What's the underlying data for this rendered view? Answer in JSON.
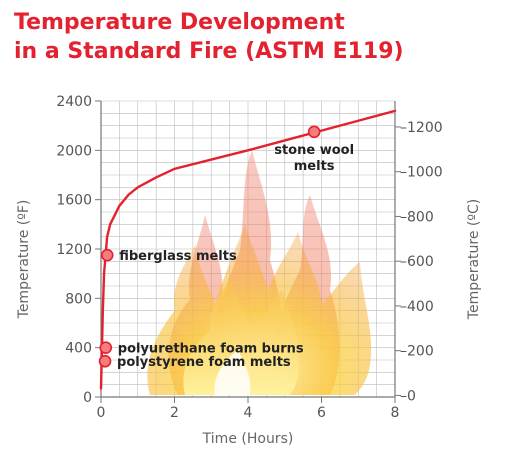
{
  "title_lines": [
    "Temperature Development",
    "in a Standard Fire (ASTM E119)"
  ],
  "colors": {
    "title": "#e3212f",
    "curve": "#e3212f",
    "marker_fill": "#f47e7e",
    "grid": "#bbbbbb",
    "axis": "#777777"
  },
  "chart_data": {
    "type": "line",
    "title": "Temperature Development in a Standard Fire (ASTM E119)",
    "xlabel": "Time (Hours)",
    "ylabel_left": "Temperature  (ºF)",
    "ylabel_right": "Temperature  (ºC)",
    "xlim": [
      0,
      8
    ],
    "ylim_f": [
      0,
      2400
    ],
    "ylim_c": [
      -7,
      1316
    ],
    "x_ticks": [
      0,
      2,
      4,
      6,
      8
    ],
    "y_ticks_f": [
      0,
      400,
      800,
      1200,
      1600,
      2000,
      2400
    ],
    "y_ticks_c": [
      0,
      200,
      400,
      600,
      800,
      1000,
      1200
    ],
    "grid": true,
    "series": [
      {
        "x": [
          0,
          0.05,
          0.083,
          0.167,
          0.25,
          0.5,
          0.75,
          1,
          1.5,
          2,
          3,
          4,
          5,
          6,
          7,
          8
        ],
        "y": [
          68,
          700,
          1000,
          1300,
          1400,
          1550,
          1640,
          1700,
          1780,
          1850,
          1925,
          2000,
          2080,
          2160,
          2240,
          2320
        ]
      }
    ],
    "annotations": [
      {
        "label": "fiberglass melts",
        "x": 0.17,
        "y": 1150
      },
      {
        "label": "polyurethane foam burns",
        "x": 0.13,
        "y": 400
      },
      {
        "label": "polystyrene foam melts",
        "x": 0.11,
        "y": 290
      },
      {
        "label_lines": [
          "stone wool",
          "melts"
        ],
        "x": 5.8,
        "y": 2150
      }
    ]
  }
}
